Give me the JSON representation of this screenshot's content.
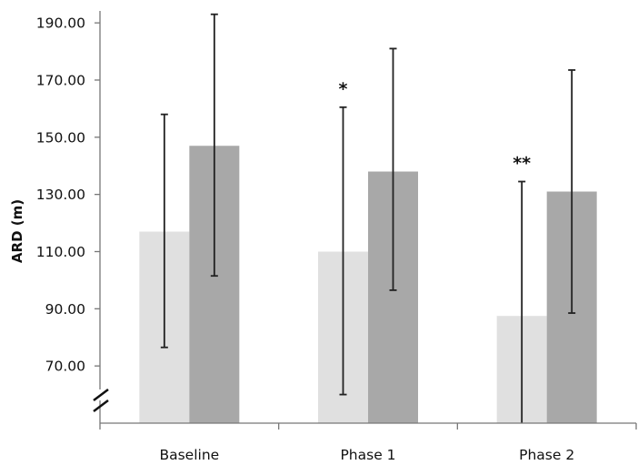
{
  "chart_data": {
    "type": "bar",
    "title": "",
    "xlabel": "",
    "ylabel": "ARD (m)",
    "ylim": [
      50,
      198
    ],
    "yticks": [
      "70.00",
      "90.00",
      "110.00",
      "130.00",
      "150.00",
      "170.00",
      "190.00"
    ],
    "axis_break": true,
    "grid": false,
    "categories": [
      "Baseline",
      "Phase 1",
      "Phase 2"
    ],
    "series": [
      {
        "color": "#e0e0e0",
        "values": [
          117,
          110,
          87.5
        ],
        "error_low": [
          76.5,
          60,
          50
        ],
        "error_high": [
          158,
          160.5,
          134.5
        ]
      },
      {
        "color": "#a8a8a8",
        "values": [
          147,
          138,
          131
        ],
        "error_low": [
          101.5,
          96.5,
          88.5
        ],
        "error_high": [
          193,
          181,
          173.5
        ]
      }
    ],
    "annotations": [
      {
        "category": "Phase 1",
        "series_index": 0,
        "text": "*"
      },
      {
        "category": "Phase 2",
        "series_index": 0,
        "text": "**"
      }
    ]
  }
}
